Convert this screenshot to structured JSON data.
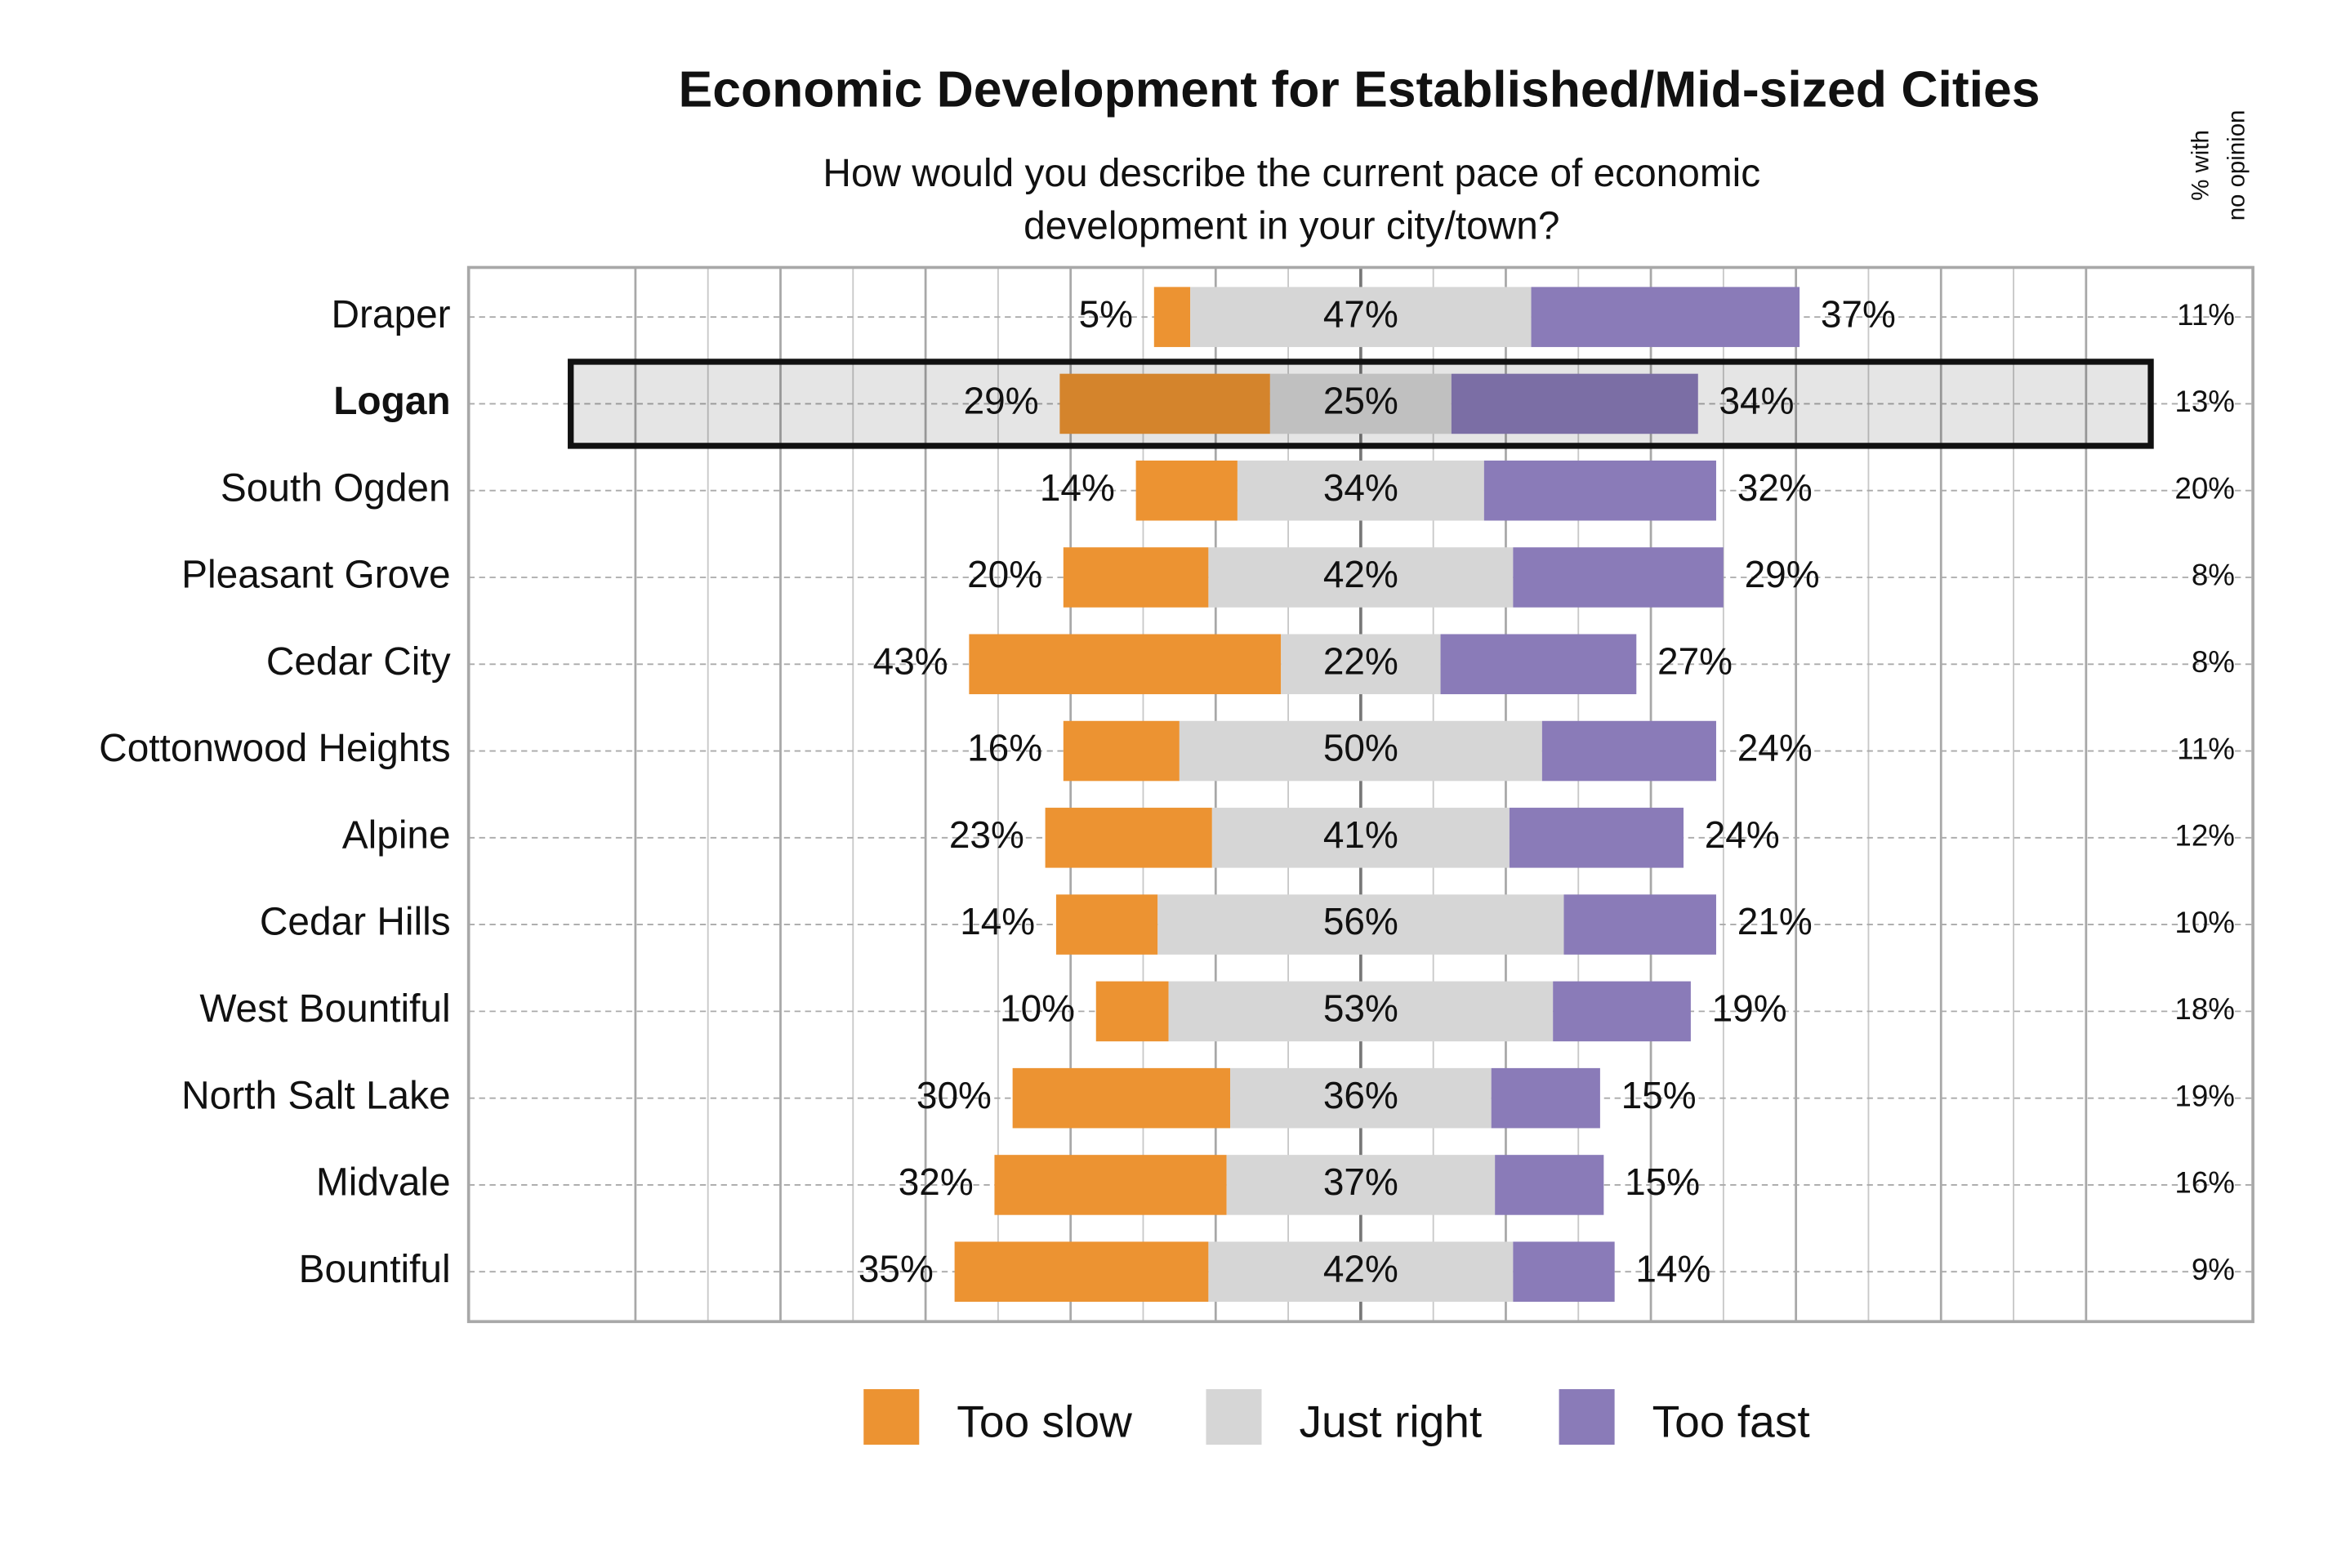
{
  "chart_data": {
    "type": "bar",
    "orientation": "horizontal",
    "stacking": "diverging",
    "title": "Economic Development for Established/Mid-sized Cities",
    "subtitle": [
      "How would you describe the current pace of economic",
      "development in your city/town?"
    ],
    "categories": [
      "Draper",
      "Logan",
      "South Ogden",
      "Pleasant Grove",
      "Cedar City",
      "Cottonwood Heights",
      "Alpine",
      "Cedar Hills",
      "West Bountiful",
      "North Salt Lake",
      "Midvale",
      "Bountiful"
    ],
    "series": [
      {
        "name": "Too slow",
        "color": "#ec9332",
        "values": [
          5,
          29,
          14,
          20,
          43,
          16,
          23,
          14,
          10,
          30,
          32,
          35
        ],
        "value_labels": [
          "5%",
          "29%",
          "14%",
          "20%",
          "43%",
          "16%",
          "23%",
          "14%",
          "10%",
          "30%",
          "32%",
          "35%"
        ]
      },
      {
        "name": "Just right",
        "color": "#d6d6d6",
        "values": [
          47,
          25,
          34,
          42,
          22,
          50,
          41,
          56,
          53,
          36,
          37,
          42
        ],
        "value_labels": [
          "47%",
          "25%",
          "34%",
          "42%",
          "22%",
          "50%",
          "41%",
          "56%",
          "53%",
          "36%",
          "37%",
          "42%"
        ]
      },
      {
        "name": "Too fast",
        "color": "#8a7bb8",
        "values": [
          37,
          34,
          32,
          29,
          27,
          24,
          24,
          21,
          19,
          15,
          15,
          14
        ],
        "value_labels": [
          "37%",
          "34%",
          "32%",
          "29%",
          "27%",
          "24%",
          "24%",
          "21%",
          "19%",
          "15%",
          "15%",
          "14%"
        ]
      }
    ],
    "no_opinion": {
      "title": [
        "% with",
        "no opinion"
      ],
      "values": [
        11,
        13,
        20,
        8,
        8,
        11,
        12,
        10,
        18,
        19,
        16,
        9
      ],
      "value_labels": [
        "11%",
        "13%",
        "20%",
        "8%",
        "8%",
        "11%",
        "12%",
        "10%",
        "18%",
        "19%",
        "16%",
        "9%"
      ]
    },
    "xlim": [
      -123,
      123
    ],
    "xticks": [
      -100,
      -80,
      -60,
      -40,
      -20,
      0,
      20,
      40,
      60,
      80,
      100
    ],
    "minor_xticks": [
      -90,
      -70,
      -50,
      -30,
      -10,
      10,
      30,
      50,
      70,
      90
    ],
    "grid": true,
    "highlight_index": 1,
    "legend": "bottom"
  }
}
